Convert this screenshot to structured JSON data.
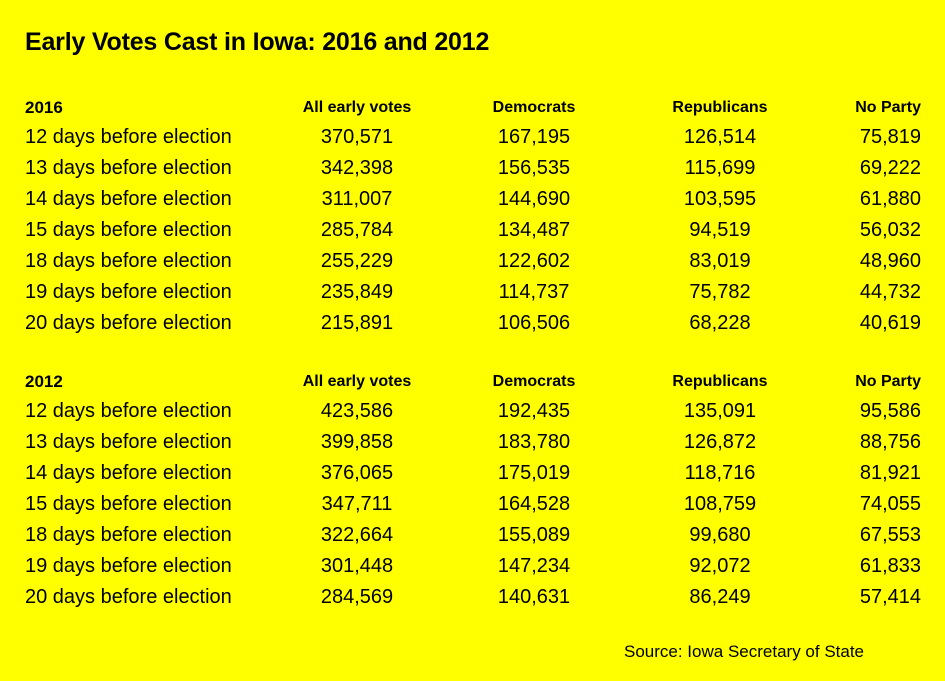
{
  "chart_data": {
    "type": "table",
    "title": "Early Votes Cast in Iowa: 2016 and 2012",
    "columns": [
      "All early votes",
      "Democrats",
      "Republicans",
      "No Party"
    ],
    "source": "Source: Iowa Secretary of State",
    "sections": [
      {
        "year": "2016",
        "rows": [
          {
            "label": "12 days before election",
            "values": [
              "370,571",
              "167,195",
              "126,514",
              "75,819"
            ]
          },
          {
            "label": "13 days before election",
            "values": [
              "342,398",
              "156,535",
              "115,699",
              "69,222"
            ]
          },
          {
            "label": "14 days before election",
            "values": [
              "311,007",
              "144,690",
              "103,595",
              "61,880"
            ]
          },
          {
            "label": "15 days before election",
            "values": [
              "285,784",
              "134,487",
              "94,519",
              "56,032"
            ]
          },
          {
            "label": "18 days before election",
            "values": [
              "255,229",
              "122,602",
              "83,019",
              "48,960"
            ]
          },
          {
            "label": "19 days before election",
            "values": [
              "235,849",
              "114,737",
              "75,782",
              "44,732"
            ]
          },
          {
            "label": "20 days before election",
            "values": [
              "215,891",
              "106,506",
              "68,228",
              "40,619"
            ]
          }
        ]
      },
      {
        "year": "2012",
        "rows": [
          {
            "label": "12 days before election",
            "values": [
              "423,586",
              "192,435",
              "135,091",
              "95,586"
            ]
          },
          {
            "label": "13 days before election",
            "values": [
              "399,858",
              "183,780",
              "126,872",
              "88,756"
            ]
          },
          {
            "label": "14 days before election",
            "values": [
              "376,065",
              "175,019",
              "118,716",
              "81,921"
            ]
          },
          {
            "label": "15 days before election",
            "values": [
              "347,711",
              "164,528",
              "108,759",
              "74,055"
            ]
          },
          {
            "label": "18 days before election",
            "values": [
              "322,664",
              "155,089",
              "99,680",
              "67,553"
            ]
          },
          {
            "label": "19 days before election",
            "values": [
              "301,448",
              "147,234",
              "92,072",
              "61,833"
            ]
          },
          {
            "label": "20 days before election",
            "values": [
              "284,569",
              "140,631",
              "86,249",
              "57,414"
            ]
          }
        ]
      }
    ]
  },
  "colors": {
    "background": "#ffff00",
    "text": "#000000"
  }
}
